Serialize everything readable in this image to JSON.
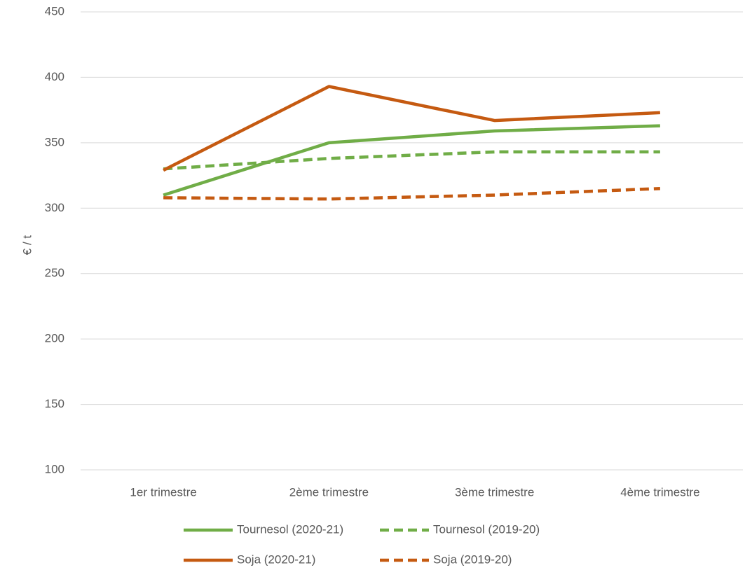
{
  "chart_data": {
    "type": "line",
    "y_label": "€ / t",
    "categories": [
      "1er trimestre",
      "2ème trimestre",
      "3ème trimestre",
      "4ème trimestre"
    ],
    "series": [
      {
        "name": "Tournesol (2020-21)",
        "color": "#70ad47",
        "dash": false,
        "values": [
          310,
          350,
          359,
          363
        ]
      },
      {
        "name": "Tournesol (2019-20)",
        "color": "#70ad47",
        "dash": true,
        "values": [
          330,
          338,
          343,
          343
        ]
      },
      {
        "name": "Soja (2020-21)",
        "color": "#c55a11",
        "dash": false,
        "values": [
          329,
          393,
          367,
          373
        ]
      },
      {
        "name": "Soja (2019-20)",
        "color": "#c55a11",
        "dash": true,
        "values": [
          308,
          307,
          310,
          315
        ]
      }
    ],
    "ylim": [
      100,
      450
    ],
    "yticks": [
      100,
      150,
      200,
      250,
      300,
      350,
      400,
      450
    ],
    "grid": true,
    "legend": "bottom"
  }
}
